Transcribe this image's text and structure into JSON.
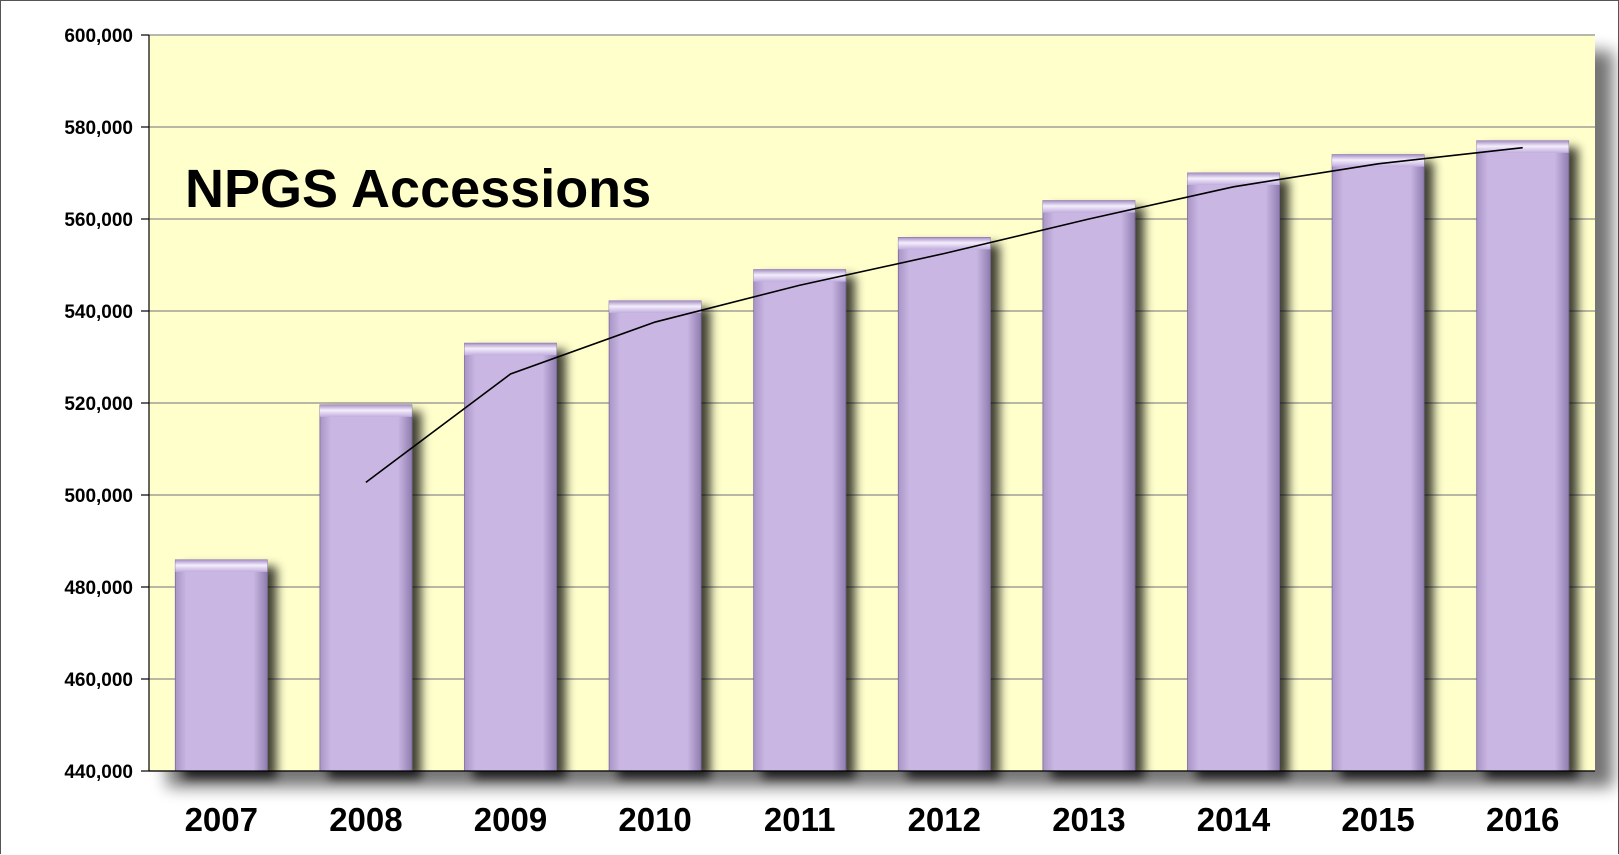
{
  "chart_data": {
    "type": "bar",
    "title": "NPGS Accessions",
    "xlabel": "",
    "ylabel": "",
    "categories": [
      "2007",
      "2008",
      "2009",
      "2010",
      "2011",
      "2012",
      "2013",
      "2014",
      "2015",
      "2016"
    ],
    "series": [
      {
        "values": [
          485900,
          519600,
          533000,
          542200,
          549000,
          556000,
          564000,
          570000,
          574000,
          577000
        ]
      }
    ],
    "trendline": {
      "type": "moving-average",
      "period": 2,
      "values": [
        502750,
        526300,
        537600,
        545600,
        552500,
        560000,
        567000,
        572000,
        575500
      ]
    },
    "ylim": [
      440000,
      600000
    ],
    "yticks": [
      "440,000",
      "460,000",
      "480,000",
      "500,000",
      "520,000",
      "540,000",
      "560,000",
      "580,000",
      "600,000"
    ],
    "ytick_values": [
      440000,
      460000,
      480000,
      500000,
      520000,
      540000,
      560000,
      580000,
      600000
    ],
    "grid": true,
    "legend": "none"
  },
  "colors": {
    "plot_background": "#ffffcc",
    "bar_fill": "#c9b6e2",
    "bar_highlight": "#f2ebfa",
    "bar_shadow": "#3b3357",
    "gridline": "#8c8c8c",
    "trendline": "#000000"
  }
}
